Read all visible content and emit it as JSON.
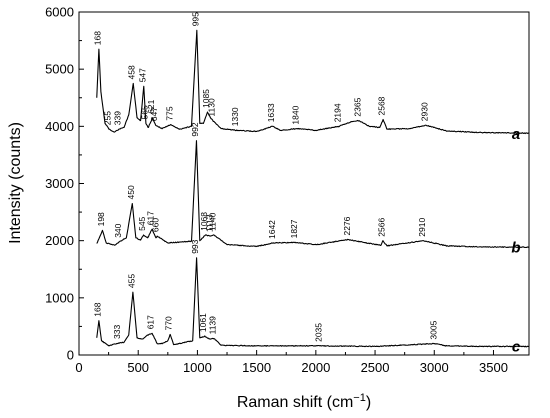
{
  "chart_data": {
    "type": "line",
    "title": "",
    "xlabel": "Raman shift (cm",
    "xlabel_sup": "−1",
    "xlabel_close": ")",
    "ylabel": "Intensity (counts)",
    "xlim": [
      0,
      3800
    ],
    "ylim": [
      0,
      6000
    ],
    "xticks": [
      0,
      500,
      1000,
      1500,
      2000,
      2500,
      3000,
      3500
    ],
    "yticks": [
      0,
      1000,
      2000,
      3000,
      4000,
      5000,
      6000
    ],
    "grid": false,
    "series": [
      {
        "name": "a",
        "baseline": 3870,
        "points": [
          [
            150,
            4500
          ],
          [
            168,
            5350
          ],
          [
            185,
            4600
          ],
          [
            220,
            4050
          ],
          [
            255,
            3950
          ],
          [
            300,
            3900
          ],
          [
            339,
            3950
          ],
          [
            380,
            3980
          ],
          [
            420,
            4200
          ],
          [
            458,
            4750
          ],
          [
            490,
            4150
          ],
          [
            520,
            4100
          ],
          [
            547,
            4700
          ],
          [
            565,
            4050
          ],
          [
            585,
            3980
          ],
          [
            621,
            4150
          ],
          [
            647,
            4020
          ],
          [
            700,
            3960
          ],
          [
            775,
            4030
          ],
          [
            850,
            3950
          ],
          [
            950,
            4000
          ],
          [
            995,
            5680
          ],
          [
            1020,
            4050
          ],
          [
            1050,
            4050
          ],
          [
            1085,
            4250
          ],
          [
            1110,
            4150
          ],
          [
            1130,
            4100
          ],
          [
            1200,
            3960
          ],
          [
            1330,
            3930
          ],
          [
            1500,
            3910
          ],
          [
            1633,
            4000
          ],
          [
            1700,
            3930
          ],
          [
            1840,
            3960
          ],
          [
            2000,
            3930
          ],
          [
            2194,
            4000
          ],
          [
            2300,
            4080
          ],
          [
            2365,
            4100
          ],
          [
            2450,
            4000
          ],
          [
            2540,
            3980
          ],
          [
            2568,
            4120
          ],
          [
            2600,
            3950
          ],
          [
            2800,
            3960
          ],
          [
            2930,
            4020
          ],
          [
            3100,
            3920
          ],
          [
            3400,
            3890
          ],
          [
            3800,
            3880
          ]
        ],
        "peaks": [
          168,
          255,
          339,
          458,
          547,
          565,
          621,
          647,
          775,
          995,
          1085,
          1130,
          1330,
          1633,
          1840,
          2194,
          2365,
          2568,
          2930
        ],
        "peak_labels": [
          "168",
          "255",
          "339",
          "458",
          "547",
          "565",
          "621",
          "647",
          "775",
          "995",
          "1085",
          "1130",
          "1330",
          "1633",
          "1840",
          "2194",
          "2365",
          "2568",
          "2930"
        ]
      },
      {
        "name": "b",
        "baseline": 1880,
        "points": [
          [
            150,
            1950
          ],
          [
            198,
            2180
          ],
          [
            230,
            1960
          ],
          [
            300,
            1920
          ],
          [
            340,
            1980
          ],
          [
            400,
            2050
          ],
          [
            450,
            2650
          ],
          [
            480,
            2050
          ],
          [
            520,
            2010
          ],
          [
            545,
            2100
          ],
          [
            580,
            2050
          ],
          [
            617,
            2200
          ],
          [
            650,
            2050
          ],
          [
            660,
            2080
          ],
          [
            750,
            1960
          ],
          [
            950,
            1990
          ],
          [
            992,
            3750
          ],
          [
            1020,
            2000
          ],
          [
            1068,
            2100
          ],
          [
            1113,
            2080
          ],
          [
            1140,
            2100
          ],
          [
            1250,
            1930
          ],
          [
            1500,
            1900
          ],
          [
            1642,
            1960
          ],
          [
            1827,
            1970
          ],
          [
            2000,
            1930
          ],
          [
            2276,
            2020
          ],
          [
            2400,
            1970
          ],
          [
            2550,
            1920
          ],
          [
            2566,
            2000
          ],
          [
            2600,
            1910
          ],
          [
            2910,
            2000
          ],
          [
            3100,
            1910
          ],
          [
            3400,
            1890
          ],
          [
            3800,
            1885
          ]
        ],
        "peaks": [
          198,
          340,
          450,
          545,
          617,
          660,
          992,
          1068,
          1113,
          1140,
          1642,
          1827,
          2276,
          2566,
          2910
        ],
        "peak_labels": [
          "198",
          "340",
          "450",
          "545",
          "617",
          "660",
          "992",
          "1068",
          "1113",
          "1140",
          "1642",
          "1827",
          "2276",
          "2566",
          "2910"
        ]
      },
      {
        "name": "c",
        "baseline": 150,
        "points": [
          [
            150,
            300
          ],
          [
            168,
            600
          ],
          [
            190,
            250
          ],
          [
            250,
            160
          ],
          [
            333,
            210
          ],
          [
            380,
            220
          ],
          [
            420,
            350
          ],
          [
            455,
            1100
          ],
          [
            490,
            300
          ],
          [
            540,
            280
          ],
          [
            580,
            350
          ],
          [
            617,
            380
          ],
          [
            660,
            200
          ],
          [
            700,
            200
          ],
          [
            750,
            250
          ],
          [
            770,
            360
          ],
          [
            800,
            180
          ],
          [
            960,
            250
          ],
          [
            993,
            1700
          ],
          [
            1020,
            300
          ],
          [
            1061,
            330
          ],
          [
            1100,
            280
          ],
          [
            1139,
            290
          ],
          [
            1200,
            170
          ],
          [
            1500,
            160
          ],
          [
            2035,
            160
          ],
          [
            2500,
            150
          ],
          [
            3005,
            200
          ],
          [
            3100,
            160
          ],
          [
            3400,
            150
          ],
          [
            3800,
            150
          ]
        ],
        "peaks": [
          168,
          333,
          455,
          617,
          770,
          993,
          1061,
          1139,
          2035,
          3005
        ],
        "peak_labels": [
          "168",
          "333",
          "455",
          "617",
          "770",
          "993",
          "1061",
          "1139",
          "2035",
          "3005"
        ]
      }
    ]
  }
}
